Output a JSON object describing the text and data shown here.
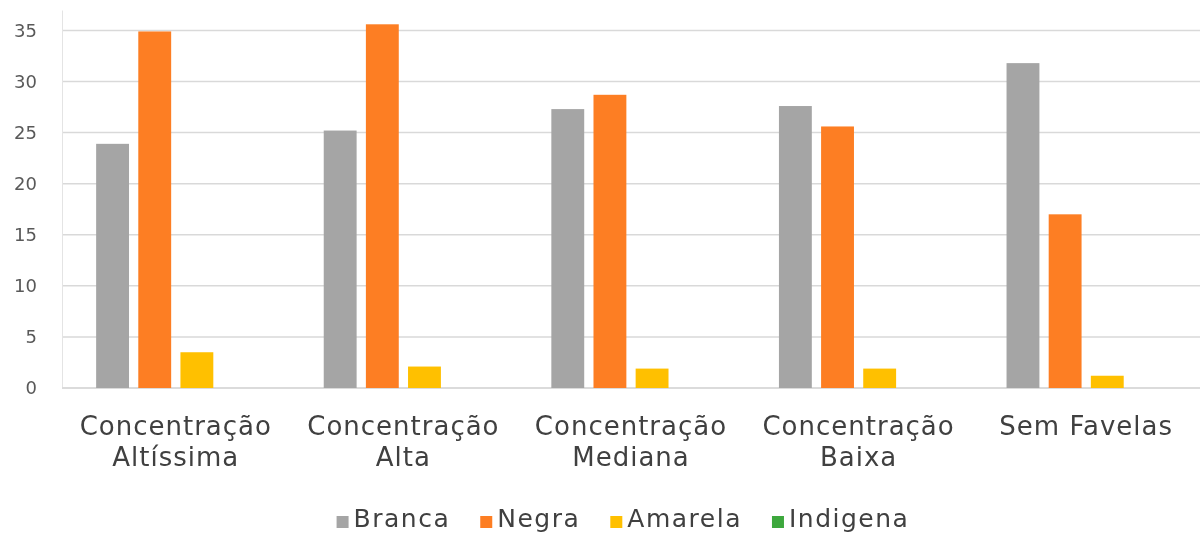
{
  "chart_data": {
    "type": "bar",
    "categories": [
      "Concentração Altíssima",
      "Concentração Alta",
      "Concentração Mediana",
      "Concentração Baixa",
      "Sem Favelas"
    ],
    "series": [
      {
        "name": "Branca",
        "color": "#a5a5a5",
        "values": [
          23.9,
          25.2,
          27.3,
          27.6,
          31.8
        ]
      },
      {
        "name": "Negra",
        "color": "#fd7e23",
        "values": [
          34.9,
          35.6,
          28.7,
          25.6,
          17.0
        ]
      },
      {
        "name": "Amarela",
        "color": "#ffc000",
        "values": [
          3.5,
          2.1,
          1.9,
          1.9,
          1.2
        ]
      },
      {
        "name": "Indigena",
        "color": "#3da83d",
        "values": [
          0,
          0,
          0,
          0,
          0
        ]
      }
    ],
    "ylim": [
      0,
      37
    ],
    "yticks": [
      0,
      5,
      10,
      15,
      20,
      25,
      30,
      35
    ],
    "grid": "y",
    "legend": "bottom"
  }
}
